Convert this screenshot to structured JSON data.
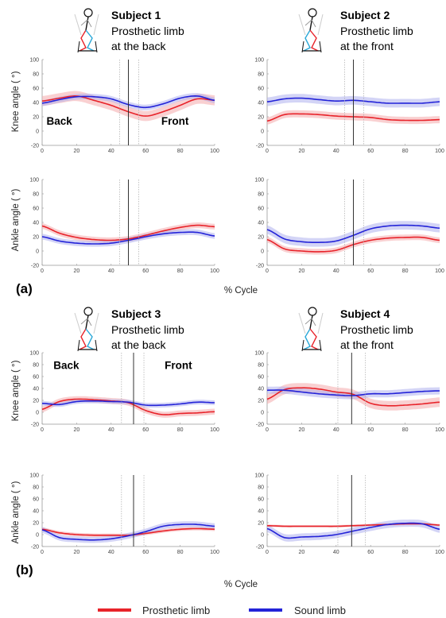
{
  "colors": {
    "prosthetic": "#e8232a",
    "sound": "#2323d8",
    "prosthetic_band": "#f4a9ab",
    "sound_band": "#aeb0ee"
  },
  "panels": [
    {
      "label": "(a)",
      "xlabel": "% Cycle"
    },
    {
      "label": "(b)",
      "xlabel": "% Cycle"
    }
  ],
  "subjects": [
    {
      "title": "Subject 1",
      "line1": "Prosthetic limb",
      "line2": "at the back",
      "icon": "stick-figure-icon"
    },
    {
      "title": "Subject 2",
      "line1": "Prosthetic limb",
      "line2": "at the front",
      "icon": "stick-figure-icon"
    },
    {
      "title": "Subject 3",
      "line1": "Prosthetic limb",
      "line2": "at the back",
      "icon": "stick-figure-icon"
    },
    {
      "title": "Subject 4",
      "line1": "Prosthetic limb",
      "line2": "at the front",
      "icon": "stick-figure-icon"
    }
  ],
  "legend": {
    "prosthetic": "Prosthetic limb",
    "sound": "Sound limb"
  },
  "chart_data": [
    {
      "type": "line",
      "subject": "Subject 1",
      "ylabel": "Knee angle ( °)",
      "xlim": [
        0,
        100
      ],
      "ylim": [
        -20,
        100
      ],
      "xticks": [
        0,
        20,
        40,
        60,
        80,
        100
      ],
      "yticks": [
        -20,
        0,
        20,
        40,
        60,
        80,
        100
      ],
      "annotations": [
        {
          "text": "Back",
          "x": 10,
          "y": 9
        },
        {
          "text": "Front",
          "x": 77,
          "y": 9
        }
      ],
      "vlines": {
        "solid": 50,
        "dotted": [
          45,
          56
        ]
      },
      "x": [
        0,
        10,
        20,
        30,
        40,
        50,
        60,
        70,
        80,
        90,
        100
      ],
      "series": [
        {
          "name": "Prosthetic limb",
          "values": [
            42,
            46,
            49,
            43,
            36,
            27,
            21,
            27,
            36,
            45,
            43
          ],
          "sd": 7
        },
        {
          "name": "Sound limb",
          "values": [
            39,
            44,
            48,
            48,
            45,
            37,
            33,
            38,
            46,
            49,
            43
          ],
          "sd": 4
        }
      ]
    },
    {
      "type": "line",
      "subject": "Subject 2",
      "ylabel": "Knee angle ( °)",
      "xlim": [
        0,
        100
      ],
      "ylim": [
        -20,
        100
      ],
      "xticks": [
        0,
        20,
        40,
        60,
        80,
        100
      ],
      "yticks": [
        -20,
        0,
        20,
        40,
        60,
        80,
        100
      ],
      "vlines": {
        "solid": 50,
        "dotted": [
          45,
          56
        ]
      },
      "x": [
        0,
        10,
        20,
        30,
        40,
        50,
        60,
        70,
        80,
        90,
        100
      ],
      "series": [
        {
          "name": "Prosthetic limb",
          "values": [
            14,
            23,
            24,
            23,
            21,
            20,
            19,
            16,
            15,
            15,
            16
          ],
          "sd": 5
        },
        {
          "name": "Sound limb",
          "values": [
            41,
            45,
            46,
            44,
            42,
            43,
            41,
            39,
            39,
            39,
            41
          ],
          "sd": 6
        }
      ]
    },
    {
      "type": "line",
      "subject": "Subject 1",
      "ylabel": "Ankle angle ( °)",
      "xlim": [
        0,
        100
      ],
      "ylim": [
        -20,
        100
      ],
      "xticks": [
        0,
        20,
        40,
        60,
        80,
        100
      ],
      "yticks": [
        -20,
        0,
        20,
        40,
        60,
        80,
        100
      ],
      "vlines": {
        "solid": 50,
        "dotted": [
          45,
          56
        ]
      },
      "x": [
        0,
        10,
        20,
        30,
        40,
        50,
        60,
        70,
        80,
        90,
        100
      ],
      "series": [
        {
          "name": "Prosthetic limb",
          "values": [
            35,
            25,
            19,
            16,
            15,
            17,
            22,
            28,
            33,
            36,
            34
          ],
          "sd": 4
        },
        {
          "name": "Sound limb",
          "values": [
            20,
            14,
            11,
            10,
            11,
            15,
            20,
            24,
            26,
            26,
            21
          ],
          "sd": 4
        }
      ]
    },
    {
      "type": "line",
      "subject": "Subject 2",
      "ylabel": "Ankle angle ( °)",
      "xlim": [
        0,
        100
      ],
      "ylim": [
        -20,
        100
      ],
      "xticks": [
        0,
        20,
        40,
        60,
        80,
        100
      ],
      "yticks": [
        -20,
        0,
        20,
        40,
        60,
        80,
        100
      ],
      "vlines": {
        "solid": 50,
        "dotted": [
          45,
          56
        ]
      },
      "x": [
        0,
        10,
        20,
        30,
        40,
        50,
        60,
        70,
        80,
        90,
        100
      ],
      "series": [
        {
          "name": "Prosthetic limb",
          "values": [
            16,
            3,
            0,
            -1,
            1,
            9,
            15,
            18,
            19,
            19,
            15
          ],
          "sd": 4
        },
        {
          "name": "Sound limb",
          "values": [
            30,
            17,
            13,
            12,
            14,
            22,
            31,
            35,
            36,
            35,
            32
          ],
          "sd": 6
        }
      ]
    },
    {
      "type": "line",
      "subject": "Subject 3",
      "ylabel": "Knee angle ( °)",
      "xlim": [
        0,
        100
      ],
      "ylim": [
        -20,
        100
      ],
      "xticks": [
        0,
        20,
        40,
        60,
        80,
        100
      ],
      "yticks": [
        -20,
        0,
        20,
        40,
        60,
        80,
        100
      ],
      "annotations": [
        {
          "text": "Back",
          "x": 14,
          "y": 73
        },
        {
          "text": "Front",
          "x": 79,
          "y": 73
        }
      ],
      "vlines": {
        "solid": 53,
        "dotted": [
          46,
          59
        ]
      },
      "x": [
        0,
        10,
        20,
        30,
        40,
        50,
        60,
        70,
        80,
        90,
        100
      ],
      "series": [
        {
          "name": "Prosthetic limb",
          "values": [
            5,
            18,
            22,
            21,
            19,
            16,
            3,
            -4,
            -2,
            -1,
            1
          ],
          "sd": 5
        },
        {
          "name": "Sound limb",
          "values": [
            15,
            13,
            18,
            19,
            18,
            17,
            12,
            12,
            14,
            17,
            16
          ],
          "sd": 4
        }
      ]
    },
    {
      "type": "line",
      "subject": "Subject 4",
      "ylabel": "Knee angle ( °)",
      "xlim": [
        0,
        100
      ],
      "ylim": [
        -20,
        100
      ],
      "xticks": [
        0,
        20,
        40,
        60,
        80,
        100
      ],
      "yticks": [
        -20,
        0,
        20,
        40,
        60,
        80,
        100
      ],
      "vlines": {
        "solid": 49,
        "dotted": [
          41,
          57
        ]
      },
      "x": [
        0,
        10,
        20,
        30,
        40,
        50,
        60,
        70,
        80,
        90,
        100
      ],
      "series": [
        {
          "name": "Prosthetic limb",
          "values": [
            22,
            38,
            41,
            39,
            34,
            30,
            15,
            11,
            12,
            14,
            17
          ],
          "sd": 8
        },
        {
          "name": "Sound limb",
          "values": [
            37,
            37,
            34,
            31,
            29,
            28,
            31,
            31,
            33,
            35,
            36
          ],
          "sd": 6
        }
      ]
    },
    {
      "type": "line",
      "subject": "Subject 3",
      "ylabel": "Ankle angle ( °)",
      "xlim": [
        0,
        100
      ],
      "ylim": [
        -20,
        100
      ],
      "xticks": [
        0,
        20,
        40,
        60,
        80,
        100
      ],
      "yticks": [
        -20,
        0,
        20,
        40,
        60,
        80,
        100
      ],
      "vlines": {
        "solid": 53,
        "dotted": [
          46,
          59
        ]
      },
      "x": [
        0,
        10,
        20,
        30,
        40,
        50,
        60,
        70,
        80,
        90,
        100
      ],
      "series": [
        {
          "name": "Prosthetic limb",
          "values": [
            9,
            3,
            0,
            -1,
            -1,
            -1,
            2,
            6,
            9,
            10,
            9
          ],
          "sd": 3
        },
        {
          "name": "Sound limb",
          "values": [
            8,
            -5,
            -8,
            -9,
            -7,
            -2,
            5,
            14,
            17,
            17,
            14
          ],
          "sd": 5
        }
      ]
    },
    {
      "type": "line",
      "subject": "Subject 4",
      "ylabel": "Ankle angle ( °)",
      "xlim": [
        0,
        100
      ],
      "ylim": [
        -20,
        100
      ],
      "xticks": [
        0,
        20,
        40,
        60,
        80,
        100
      ],
      "yticks": [
        -20,
        0,
        20,
        40,
        60,
        80,
        100
      ],
      "vlines": {
        "solid": 49,
        "dotted": [
          41,
          57
        ]
      },
      "x": [
        0,
        10,
        20,
        30,
        40,
        50,
        60,
        70,
        80,
        90,
        100
      ],
      "series": [
        {
          "name": "Prosthetic limb",
          "values": [
            15,
            14,
            14,
            14,
            14,
            15,
            16,
            17,
            18,
            18,
            16
          ],
          "sd": 2
        },
        {
          "name": "Sound limb",
          "values": [
            10,
            -5,
            -4,
            -3,
            0,
            6,
            12,
            17,
            19,
            18,
            9
          ],
          "sd": 6
        }
      ]
    }
  ]
}
